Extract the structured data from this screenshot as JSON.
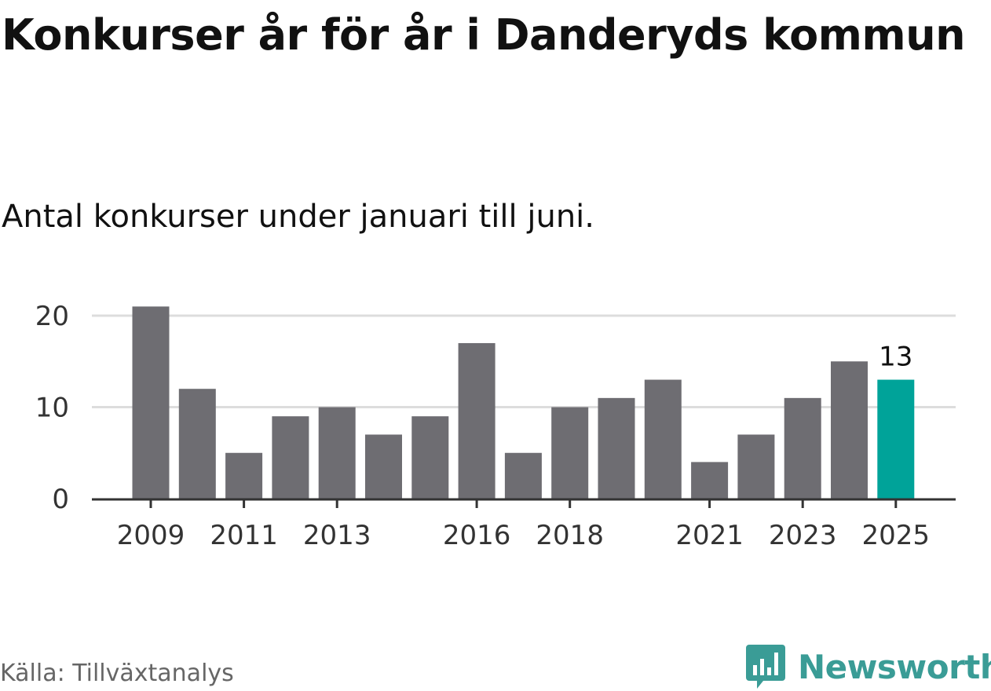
{
  "header": {
    "title": "Konkurser år för år i Danderyds kommun",
    "subtitle": "Antal konkurser under januari till juni."
  },
  "footer": {
    "source": "Källa: Tillväxtanalys",
    "brand": "Newsworthy",
    "brand_logo_icon": "bar-chart-speech-bubble-icon"
  },
  "colors": {
    "bar": "#6e6d72",
    "highlight": "#00a399",
    "grid": "#dddddd",
    "axis": "#333333",
    "brand": "#3a9c96"
  },
  "chart_data": {
    "type": "bar",
    "categories": [
      "2009",
      "2010",
      "2011",
      "2012",
      "2013",
      "2014",
      "2015",
      "2016",
      "2017",
      "2018",
      "2019",
      "2020",
      "2021",
      "2022",
      "2023",
      "2024",
      "2025"
    ],
    "values": [
      21,
      12,
      5,
      9,
      10,
      7,
      9,
      17,
      5,
      10,
      11,
      13,
      4,
      7,
      11,
      15,
      13
    ],
    "x_tick_labels": [
      "2009",
      "2011",
      "2013",
      "2016",
      "2018",
      "2021",
      "2023",
      "2025"
    ],
    "y_ticks": [
      0,
      10,
      20
    ],
    "ylim": [
      0,
      21
    ],
    "highlight_category": "2025",
    "highlight_label": "13",
    "xlabel": "",
    "ylabel": "",
    "grid": true,
    "legend": "none"
  }
}
